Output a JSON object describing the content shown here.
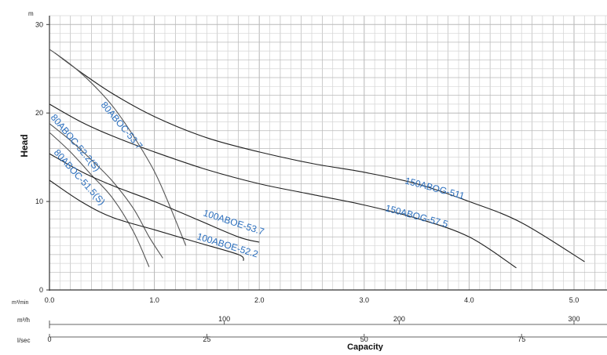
{
  "chart_data": {
    "type": "line",
    "y_unit": "m",
    "ylabel": "Head",
    "xlabel": "Capacity",
    "ylim": [
      0,
      31
    ],
    "xlim": [
      0,
      5.3
    ],
    "grid": true,
    "y_ticks": [
      "0",
      "10",
      "20",
      "30"
    ],
    "x_axis_rows": [
      {
        "unit": "m³/min",
        "ticks": [
          "0.0",
          "1.0",
          "2.0",
          "3.0",
          "4.0",
          "5.0"
        ],
        "values": [
          0,
          1,
          2,
          3,
          4,
          5
        ]
      },
      {
        "unit": "m³/h",
        "ticks": [
          "100",
          "200",
          "300"
        ],
        "values": [
          100,
          200,
          300
        ]
      },
      {
        "unit": "l/sec",
        "ticks": [
          "0",
          "25",
          "50",
          "75"
        ],
        "values": [
          0,
          25,
          50,
          75
        ]
      }
    ],
    "series": [
      {
        "name": "150ABOG-511",
        "color": "#1f1f1f",
        "label_color": "#2a6ebd",
        "points": [
          [
            0.05,
            26.8
          ],
          [
            0.3,
            24.6
          ],
          [
            0.6,
            22.2
          ],
          [
            1.0,
            19.6
          ],
          [
            1.5,
            17.2
          ],
          [
            2.0,
            15.6
          ],
          [
            2.5,
            14.3
          ],
          [
            3.0,
            13.3
          ],
          [
            3.5,
            12.0
          ],
          [
            4.0,
            10.0
          ],
          [
            4.5,
            7.6
          ],
          [
            5.1,
            3.2
          ]
        ]
      },
      {
        "name": "150ABOG-57.5",
        "color": "#1f1f1f",
        "label_color": "#2a6ebd",
        "points": [
          [
            0.0,
            21.0
          ],
          [
            0.3,
            19.0
          ],
          [
            0.6,
            17.4
          ],
          [
            1.0,
            15.6
          ],
          [
            1.5,
            13.6
          ],
          [
            2.0,
            12.0
          ],
          [
            2.5,
            10.8
          ],
          [
            3.0,
            9.6
          ],
          [
            3.5,
            8.1
          ],
          [
            4.0,
            6.0
          ],
          [
            4.45,
            2.5
          ]
        ]
      },
      {
        "name": "80ABOC-53.7",
        "color": "#555555",
        "label_color": "#2a6ebd",
        "points": [
          [
            0.0,
            27.2
          ],
          [
            0.2,
            25.5
          ],
          [
            0.4,
            23.4
          ],
          [
            0.6,
            20.8
          ],
          [
            0.8,
            17.4
          ],
          [
            1.0,
            13.4
          ],
          [
            1.15,
            9.4
          ],
          [
            1.3,
            5.0
          ]
        ]
      },
      {
        "name": "80ABOC-52.2(S)",
        "color": "#555555",
        "label_color": "#2a6ebd",
        "points": [
          [
            0.0,
            18.8
          ],
          [
            0.2,
            16.9
          ],
          [
            0.4,
            14.7
          ],
          [
            0.6,
            12.3
          ],
          [
            0.8,
            9.2
          ],
          [
            0.95,
            6.0
          ],
          [
            1.08,
            3.6
          ]
        ]
      },
      {
        "name": "80ABOC-51.5(S)",
        "color": "#555555",
        "label_color": "#2a6ebd",
        "points": [
          [
            0.0,
            17.8
          ],
          [
            0.2,
            15.6
          ],
          [
            0.4,
            13.0
          ],
          [
            0.6,
            10.4
          ],
          [
            0.8,
            6.6
          ],
          [
            0.95,
            2.6
          ]
        ]
      },
      {
        "name": "100ABOE-53.7",
        "color": "#1f1f1f",
        "label_color": "#2a6ebd",
        "points": [
          [
            0.0,
            15.4
          ],
          [
            0.3,
            13.4
          ],
          [
            0.6,
            11.8
          ],
          [
            1.0,
            10.0
          ],
          [
            1.4,
            8.0
          ],
          [
            1.8,
            6.0
          ],
          [
            2.0,
            5.4
          ]
        ]
      },
      {
        "name": "100ABOE-52.2",
        "color": "#1f1f1f",
        "label_color": "#2a6ebd",
        "points": [
          [
            0.0,
            12.4
          ],
          [
            0.3,
            10.0
          ],
          [
            0.6,
            8.2
          ],
          [
            1.0,
            6.8
          ],
          [
            1.4,
            5.4
          ],
          [
            1.8,
            4.0
          ],
          [
            1.85,
            3.3
          ]
        ]
      }
    ]
  }
}
